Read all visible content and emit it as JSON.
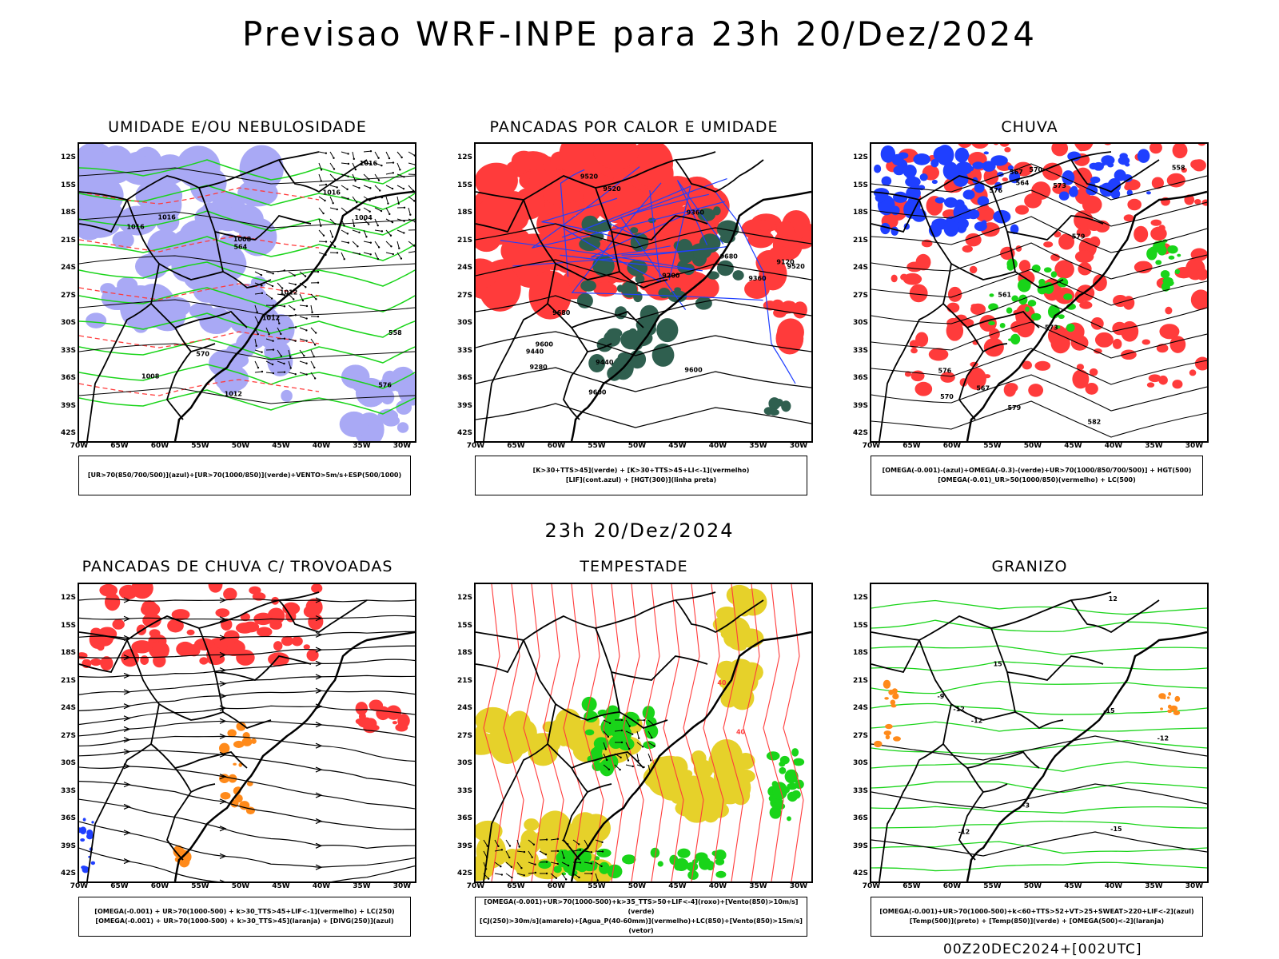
{
  "title": "Previsao WRF-INPE  para 23h 20/Dez/2024",
  "mid_date": "23h 20/Dez/2024",
  "footer": "00Z20DEC2024+[002UTC]",
  "lat_ticks": [
    "12S",
    "15S",
    "18S",
    "21S",
    "24S",
    "27S",
    "30S",
    "33S",
    "36S",
    "39S",
    "42S"
  ],
  "lon_ticks": [
    "70W",
    "65W",
    "60W",
    "55W",
    "50W",
    "45W",
    "40W",
    "35W",
    "30W"
  ],
  "colors": {
    "blue": "#1f3fff",
    "green": "#19d419",
    "red": "#ff3b3b",
    "lavender": "#a9a9f5",
    "darkgreen": "#2f5f4f",
    "orange": "#ff8a1a",
    "yellow": "#e6d12a",
    "black": "#000000"
  },
  "panels": [
    {
      "title": "UMIDADE E/OU NEBULOSIDADE",
      "legend": [
        "[UR>70(850/700/500)](azul)+[UR>70(1000/850)](verde)+VENTO>5m/s+ESP(500/1000)"
      ],
      "contour_labels": [
        "1012",
        "1012",
        "1016",
        "1016",
        "1012",
        "1008",
        "1004",
        "1008",
        "576",
        "570",
        "564",
        "558",
        "1016",
        "1016"
      ]
    },
    {
      "title": "PANCADAS POR CALOR E UMIDADE",
      "legend": [
        "[K>30+TTS>45](verde) + [K>30+TTS>45+LI<-1](vermelho)",
        "[LIF](cont.azul) + [HGT(300)](linha preta)"
      ],
      "contour_labels": [
        "9680",
        "9680",
        "9600",
        "9600",
        "9520",
        "9520",
        "9440",
        "9440",
        "9360",
        "9360",
        "9280",
        "9200",
        "9120",
        "9600",
        "9520"
      ]
    },
    {
      "title": "CHUVA",
      "legend": [
        "[OMEGA(-0.001)-(azul)+OMEGA(-0.3)-(verde)+UR>70(1000/850/700/500)] + HGT(500)",
        "[OMEGA(-0.01)_UR>50(1000/850)(vermelho) + LC(500)"
      ],
      "contour_labels": [
        "582",
        "579",
        "576",
        "573",
        "570",
        "567",
        "564",
        "561",
        "558",
        "579",
        "576",
        "573",
        "570",
        "567"
      ]
    },
    {
      "title": "PANCADAS DE CHUVA C/ TROVOADAS",
      "legend": [
        "[OMEGA(-0.001) + UR>70(1000-500) + k>30_TTS>45+LIF<-1](vermelho) + LC(250)",
        "[OMEGA(-0.001) + UR>70(1000-500) + k>30_TTS>45](laranja) + [DIVG(250)](azul)"
      ]
    },
    {
      "title": "TEMPESTADE",
      "legend": [
        "[OMEGA(-0.001)+UR>70(1000-500)+k>35_TTS>50+LIF<-4](roxo)+[Vento(850)>10m/s](verde)",
        "[CJ(250)>30m/s](amarelo)+[Agua_P(40-60mm)](vermelho)+LC(850)+[Vento(850)>15m/s](vetor)"
      ],
      "contour_labels": [
        "40",
        "40"
      ]
    },
    {
      "title": "GRANIZO",
      "legend": [
        "[OMEGA(-0.001)+UR>70(1000-500)+k<60+TTS>52+VT>25+SWEAT>220+LIF<-2](azul)",
        "[Temp(500)](preto) + [Temp(850)](verde) + [OMEGA(500)<-2](laranja)"
      ],
      "contour_labels": [
        "-12",
        "-15",
        "-12",
        "-9",
        "-3",
        "-12",
        "-15",
        "-12",
        "12",
        "15"
      ]
    }
  ]
}
